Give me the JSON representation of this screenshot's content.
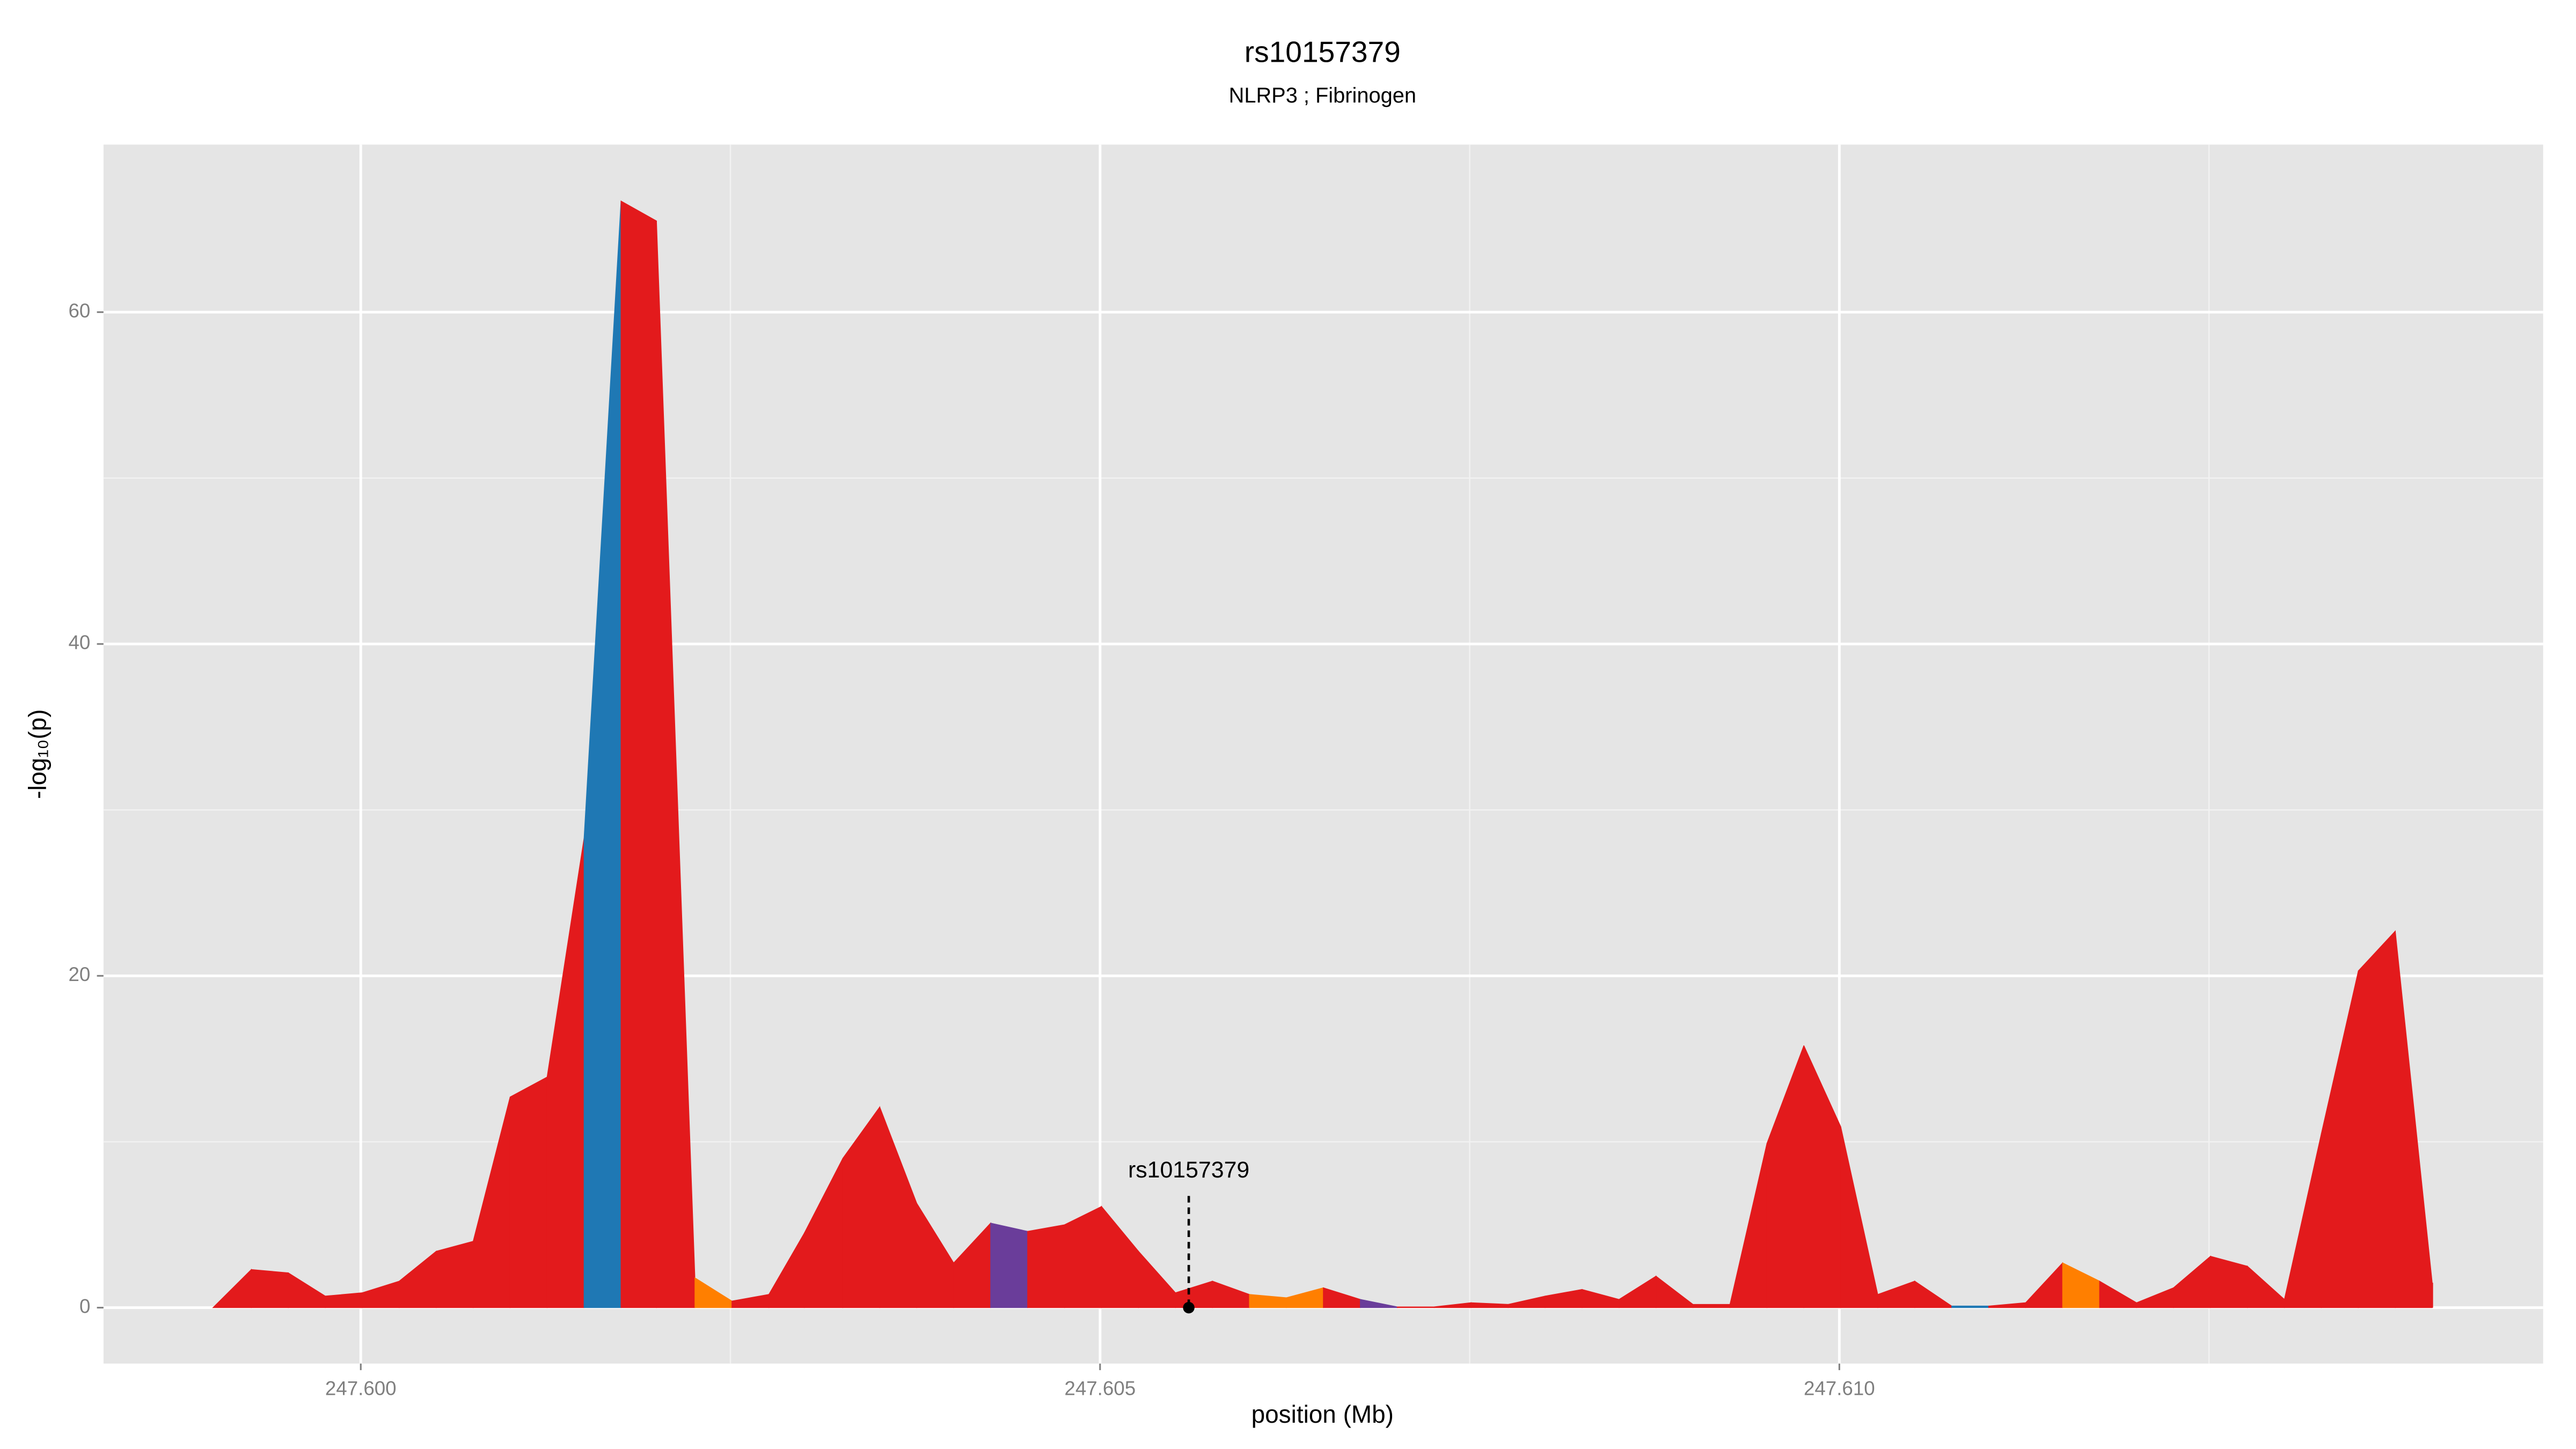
{
  "chart_data": {
    "type": "area",
    "title": "rs10157379",
    "subtitle": "NLRP3 ; Fibrinogen",
    "x_label": "position (Mb)",
    "y_label": "-log₁₀(p)",
    "x": [
      247.599,
      247.59926,
      247.59951,
      247.59976,
      247.60001,
      247.60026,
      247.60051,
      247.60076,
      247.60101,
      247.60126,
      247.60151,
      247.60176,
      247.602,
      247.60226,
      247.60251,
      247.60276,
      247.603,
      247.60326,
      247.60351,
      247.60376,
      247.60401,
      247.60426,
      247.60451,
      247.60476,
      247.60501,
      247.60526,
      247.60551,
      247.60576,
      247.60601,
      247.60626,
      247.60651,
      247.60676,
      247.60701,
      247.60726,
      247.60751,
      247.60776,
      247.60801,
      247.60826,
      247.60851,
      247.60876,
      247.60901,
      247.60926,
      247.60951,
      247.60976,
      247.61001,
      247.61026,
      247.61051,
      247.61076,
      247.61101,
      247.61126,
      247.61151,
      247.61176,
      247.61201,
      247.61226,
      247.61251,
      247.61276,
      247.61301,
      247.61326,
      247.61351,
      247.61376,
      247.61401
    ],
    "values": [
      0,
      2.3,
      2.1,
      0.7,
      0.9,
      1.6,
      3.4,
      4.0,
      12.7,
      13.9,
      28.3,
      66.7,
      65.5,
      1.8,
      0.4,
      0.8,
      4.5,
      9.0,
      12.1,
      6.3,
      2.7,
      5.1,
      4.6,
      5.0,
      6.1,
      3.4,
      0.9,
      1.6,
      0.8,
      0.6,
      1.2,
      0.5,
      0.05,
      0.05,
      0.3,
      0.2,
      0.7,
      1.1,
      0.5,
      1.9,
      0.2,
      0.2,
      9.9,
      15.8,
      10.9,
      0.8,
      1.6,
      0.1,
      0.1,
      0.3,
      2.7,
      1.6,
      0.3,
      1.2,
      3.1,
      2.5,
      0.5,
      10.5,
      20.3,
      22.7,
      1.5
    ],
    "colors": [
      "#e31a1c",
      "#e31a1c",
      "#e31a1c",
      "#e31a1c",
      "#e31a1c",
      "#e31a1c",
      "#e31a1c",
      "#e31a1c",
      "#e31a1c",
      "#e31a1c",
      "#1f78b4",
      "#e31a1c",
      "#e31a1c",
      "#ff7f00",
      "#e31a1c",
      "#e31a1c",
      "#e31a1c",
      "#e31a1c",
      "#e31a1c",
      "#e31a1c",
      "#e31a1c",
      "#6a3d9a",
      "#e31a1c",
      "#e31a1c",
      "#e31a1c",
      "#e31a1c",
      "#e31a1c",
      "#e31a1c",
      "#ff7f00",
      "#ff7f00",
      "#e31a1c",
      "#6a3d9a",
      "#e31a1c",
      "#e31a1c",
      "#e31a1c",
      "#e31a1c",
      "#e31a1c",
      "#e31a1c",
      "#e31a1c",
      "#e31a1c",
      "#e31a1c",
      "#e31a1c",
      "#e31a1c",
      "#e31a1c",
      "#e31a1c",
      "#e31a1c",
      "#e31a1c",
      "#1f78b4",
      "#e31a1c",
      "#e31a1c",
      "#ff7f00",
      "#e31a1c",
      "#e31a1c",
      "#e31a1c",
      "#e31a1c",
      "#e31a1c",
      "#e31a1c",
      "#e31a1c",
      "#e31a1c",
      "#e31a1c",
      "#e31a1c"
    ],
    "annotation": {
      "label": "rs10157379",
      "x": 247.6056,
      "y": 0
    },
    "xlim": [
      247.59826,
      247.61476
    ],
    "ylim": [
      -3.37,
      70.1
    ],
    "xticks": [
      {
        "value": 247.6,
        "label": "247.600"
      },
      {
        "value": 247.605,
        "label": "247.605"
      },
      {
        "value": 247.61,
        "label": "247.610"
      }
    ],
    "yticks": [
      0,
      20,
      40,
      60
    ],
    "x_minor": [
      247.6025,
      247.6075,
      247.6125
    ],
    "y_minor": [
      10,
      30,
      50
    ],
    "grid": true
  }
}
